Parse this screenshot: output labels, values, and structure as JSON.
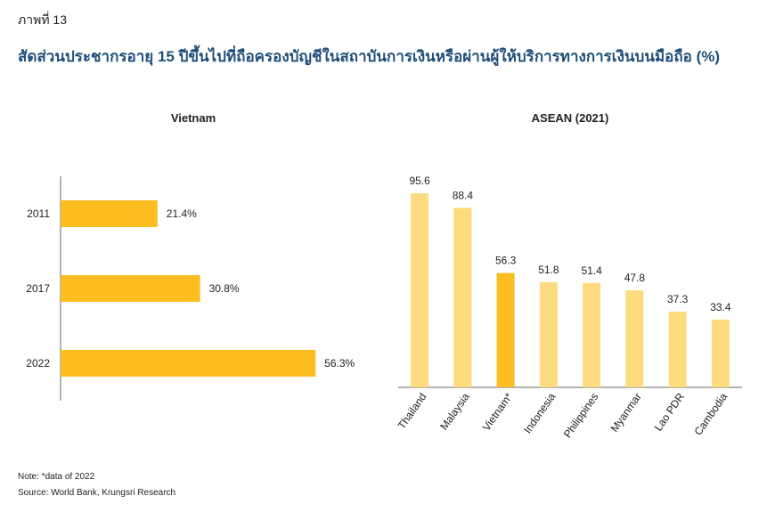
{
  "figure": {
    "label": "ภาพที่ 13",
    "title": "สัดส่วนประชากรอายุ 15 ปีขึ้นไปที่ถือครองบัญชีในสถาบันการเงินหรือผ่านผู้ให้บริการทางการเงินบนมือถือ (%)"
  },
  "notes": {
    "note": "Note: *data of 2022",
    "source": "Source: World Bank, Krungsri Research"
  },
  "colors": {
    "highlight": "#fbbd1f",
    "light": "#fedb7f",
    "axis": "#666666"
  },
  "chart_data": [
    {
      "type": "bar",
      "orientation": "horizontal",
      "title": "Vietnam",
      "categories": [
        "2011",
        "2017",
        "2022"
      ],
      "values": [
        21.4,
        30.8,
        56.3
      ],
      "value_labels": [
        "21.4%",
        "30.8%",
        "56.3%"
      ],
      "xlim": [
        0,
        60
      ],
      "grid": false
    },
    {
      "type": "bar",
      "orientation": "vertical",
      "title": "ASEAN (2021)",
      "categories": [
        "Thailand",
        "Malaysia",
        "Vietnam*",
        "Indonesia",
        "Philippines",
        "Myanmar",
        "Lao PDR",
        "Cambodia"
      ],
      "values": [
        95.6,
        88.4,
        56.3,
        51.8,
        51.4,
        47.8,
        37.3,
        33.4
      ],
      "value_labels": [
        "95.6",
        "88.4",
        "56.3",
        "51.8",
        "51.4",
        "47.8",
        "37.3",
        "33.4"
      ],
      "highlight_index": 2,
      "ylim": [
        0,
        100
      ],
      "grid": false
    }
  ]
}
